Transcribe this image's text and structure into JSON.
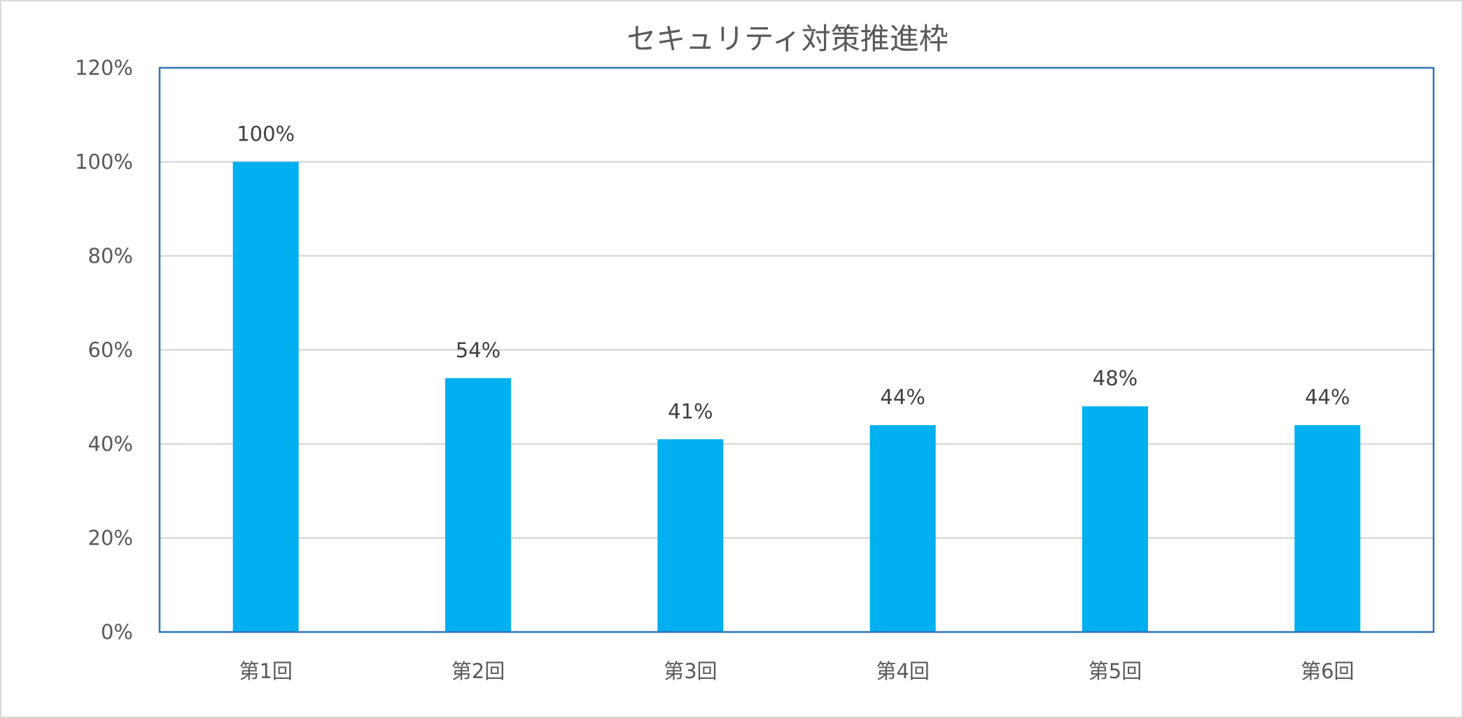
{
  "chart_data": {
    "type": "bar",
    "title": "セキュリティ対策推進枠",
    "categories": [
      "第1回",
      "第2回",
      "第3回",
      "第4回",
      "第5回",
      "第6回"
    ],
    "values": [
      100,
      54,
      41,
      44,
      48,
      44
    ],
    "data_labels": [
      "100%",
      "54%",
      "41%",
      "44%",
      "48%",
      "44%"
    ],
    "ylim": [
      0,
      120
    ],
    "yticks": [
      0,
      20,
      40,
      60,
      80,
      100,
      120
    ],
    "ytick_labels": [
      "0%",
      "20%",
      "40%",
      "60%",
      "80%",
      "100%",
      "120%"
    ],
    "grid": true,
    "legend": "none",
    "bar_color": "#00B0F0",
    "plot_border_color": "#2E75B6"
  }
}
